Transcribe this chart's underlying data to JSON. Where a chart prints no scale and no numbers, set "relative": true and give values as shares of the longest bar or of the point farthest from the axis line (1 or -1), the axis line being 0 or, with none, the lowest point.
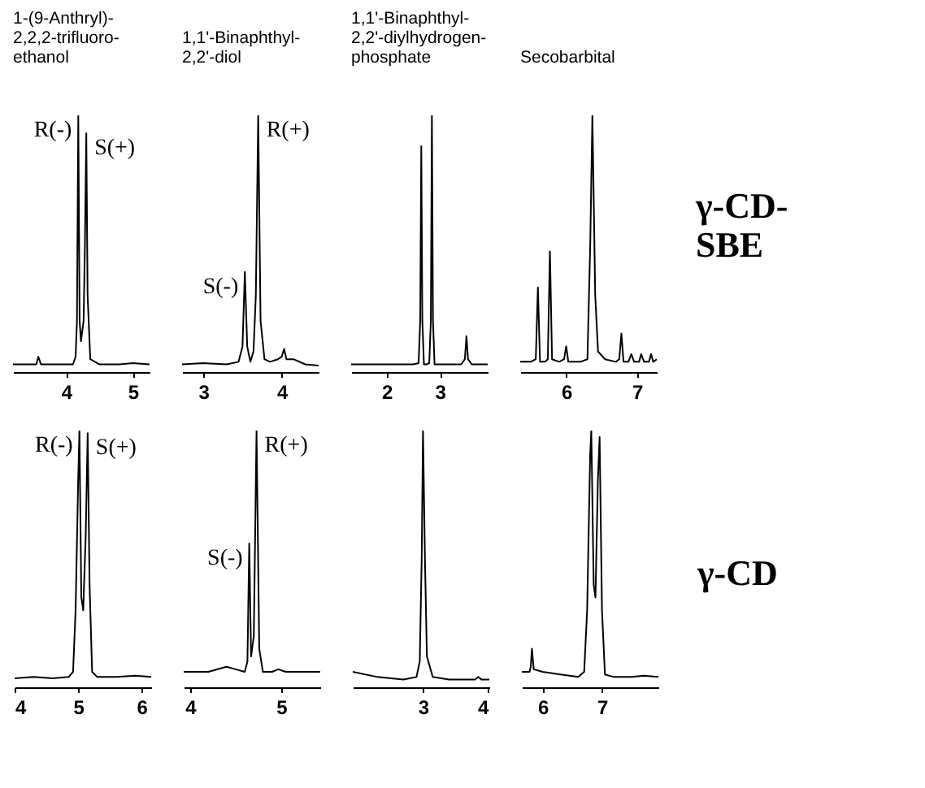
{
  "chart_data": [
    {
      "type": "line",
      "title": "1-(9-Anthryl)-\n2,2,2-trifluoro-\nethanol",
      "relative": true,
      "color": "#000000",
      "xlim": [
        3.2,
        5.25
      ],
      "xticks": [
        4,
        5
      ],
      "x": [
        3.2,
        3.4,
        3.55,
        3.58,
        3.62,
        3.8,
        4.1,
        4.14,
        4.16,
        4.18,
        4.2,
        4.22,
        4.26,
        4.28,
        4.3,
        4.32,
        4.36,
        4.5,
        4.8,
        5.0,
        5.25
      ],
      "values": [
        0.03,
        0.03,
        0.03,
        0.06,
        0.03,
        0.03,
        0.03,
        0.06,
        0.2,
        1,
        0.2,
        0.12,
        0.2,
        0.5,
        0.93,
        0.3,
        0.05,
        0.03,
        0.03,
        0.035,
        0.03
      ],
      "annotations": [
        {
          "text": "R(-)",
          "x": 4.18,
          "y": 1
        },
        {
          "text": "S(+)",
          "x": 4.3,
          "y": 0.93
        }
      ]
    },
    {
      "type": "line",
      "title": "1,1'-Binaphthyl-\n2,2'-diol",
      "relative": true,
      "color": "#000000",
      "xlim": [
        2.73,
        4.47
      ],
      "xticks": [
        3,
        4
      ],
      "x": [
        2.73,
        3.0,
        3.3,
        3.45,
        3.5,
        3.53,
        3.56,
        3.6,
        3.64,
        3.67,
        3.7,
        3.73,
        3.78,
        3.85,
        3.95,
        4.0,
        4.03,
        4.06,
        4.15,
        4.3,
        4.47
      ],
      "values": [
        0.03,
        0.035,
        0.03,
        0.04,
        0.1,
        0.39,
        0.1,
        0.04,
        0.08,
        0.3,
        1,
        0.2,
        0.05,
        0.04,
        0.05,
        0.06,
        0.09,
        0.05,
        0.05,
        0.03,
        0.025
      ],
      "annotations": [
        {
          "text": "S(-)",
          "x": 3.53,
          "y": 0.39
        },
        {
          "text": "R(+)",
          "x": 3.7,
          "y": 1
        }
      ]
    },
    {
      "type": "line",
      "title": "1,1'-Binaphthyl-\n2,2'-diylhydrogen-\nphosphate",
      "relative": true,
      "color": "#000000",
      "xlim": [
        1.33,
        3.9
      ],
      "xticks": [
        2,
        3
      ],
      "x": [
        1.33,
        2.0,
        2.5,
        2.6,
        2.63,
        2.65,
        2.67,
        2.7,
        2.75,
        2.8,
        2.83,
        2.85,
        2.87,
        2.9,
        3.0,
        3.4,
        3.47,
        3.5,
        3.53,
        3.6,
        3.9
      ],
      "values": [
        0.03,
        0.03,
        0.03,
        0.035,
        0.2,
        0.88,
        0.2,
        0.03,
        0.03,
        0.035,
        0.2,
        1,
        0.2,
        0.03,
        0.03,
        0.03,
        0.05,
        0.14,
        0.05,
        0.03,
        0.03
      ]
    },
    {
      "type": "line",
      "title": "Secobarbital",
      "relative": true,
      "color": "#000000",
      "xlim": [
        5.35,
        7.28
      ],
      "xticks": [
        6,
        7
      ],
      "x": [
        5.35,
        5.5,
        5.57,
        5.6,
        5.63,
        5.7,
        5.74,
        5.77,
        5.8,
        5.9,
        5.97,
        6.0,
        6.03,
        6.2,
        6.3,
        6.34,
        6.37,
        6.41,
        6.45,
        6.55,
        6.7,
        6.75,
        6.78,
        6.81,
        6.88,
        6.92,
        6.96,
        7.03,
        7.06,
        7.1,
        7.17,
        7.2,
        7.23,
        7.28
      ],
      "values": [
        0.04,
        0.04,
        0.05,
        0.33,
        0.04,
        0.04,
        0.05,
        0.47,
        0.05,
        0.04,
        0.05,
        0.1,
        0.04,
        0.04,
        0.05,
        0.5,
        1,
        0.3,
        0.08,
        0.05,
        0.04,
        0.05,
        0.15,
        0.04,
        0.04,
        0.07,
        0.04,
        0.04,
        0.07,
        0.04,
        0.04,
        0.07,
        0.04,
        0.05
      ],
      "annotations": [
        "γ-CD-\nSBE"
      ]
    },
    {
      "type": "line",
      "relative": true,
      "color": "#000000",
      "xlim": [
        4,
        6.15
      ],
      "xticks": [
        4,
        5,
        6
      ],
      "x": [
        4,
        4.3,
        4.6,
        4.85,
        4.92,
        4.96,
        5.0,
        5.02,
        5.05,
        5.08,
        5.12,
        5.15,
        5.18,
        5.22,
        5.3,
        5.6,
        5.9,
        6.15
      ],
      "values": [
        0.035,
        0.04,
        0.035,
        0.04,
        0.06,
        0.3,
        0.8,
        1,
        0.35,
        0.3,
        0.6,
        0.99,
        0.4,
        0.06,
        0.04,
        0.04,
        0.045,
        0.04
      ],
      "annotations": [
        {
          "text": "R(-)",
          "x": 5.02,
          "y": 1
        },
        {
          "text": "S(+)",
          "x": 5.15,
          "y": 0.99
        }
      ]
    },
    {
      "type": "line",
      "relative": true,
      "color": "#000000",
      "xlim": [
        3.93,
        5.43
      ],
      "xticks": [
        4,
        5
      ],
      "x": [
        3.93,
        4.2,
        4.4,
        4.5,
        4.6,
        4.63,
        4.65,
        4.67,
        4.7,
        4.73,
        4.76,
        4.8,
        4.9,
        4.97,
        5.05,
        5.2,
        5.43
      ],
      "values": [
        0.06,
        0.06,
        0.08,
        0.07,
        0.06,
        0.1,
        0.56,
        0.12,
        0.2,
        1,
        0.15,
        0.06,
        0.06,
        0.07,
        0.06,
        0.06,
        0.06
      ],
      "annotations": [
        {
          "text": "S(-)",
          "x": 4.65,
          "y": 0.56
        },
        {
          "text": "R(+)",
          "x": 4.73,
          "y": 1
        }
      ]
    },
    {
      "type": "line",
      "relative": true,
      "color": "#000000",
      "xlim": [
        1.92,
        4.02
      ],
      "xticks": [
        3,
        4
      ],
      "x": [
        1.92,
        2.3,
        2.7,
        2.9,
        2.95,
        2.98,
        3.0,
        3.03,
        3.06,
        3.15,
        3.4,
        3.8,
        3.85,
        3.9,
        4.02
      ],
      "values": [
        0.06,
        0.04,
        0.03,
        0.04,
        0.1,
        0.5,
        1,
        0.5,
        0.12,
        0.04,
        0.03,
        0.03,
        0.04,
        0.03,
        0.03
      ]
    },
    {
      "type": "line",
      "relative": true,
      "color": "#000000",
      "xlim": [
        5.65,
        7.95
      ],
      "xticks": [
        6,
        7
      ],
      "x": [
        5.65,
        5.78,
        5.8,
        5.82,
        5.85,
        6.0,
        6.3,
        6.6,
        6.7,
        6.75,
        6.8,
        6.82,
        6.86,
        6.89,
        6.93,
        6.96,
        7.0,
        7.05,
        7.2,
        7.5,
        7.7,
        7.95
      ],
      "values": [
        0.06,
        0.06,
        0.08,
        0.15,
        0.07,
        0.06,
        0.05,
        0.04,
        0.06,
        0.3,
        0.9,
        1,
        0.4,
        0.35,
        0.8,
        0.975,
        0.3,
        0.05,
        0.04,
        0.04,
        0.045,
        0.04
      ],
      "annotations": [
        "γ-CD"
      ]
    }
  ]
}
